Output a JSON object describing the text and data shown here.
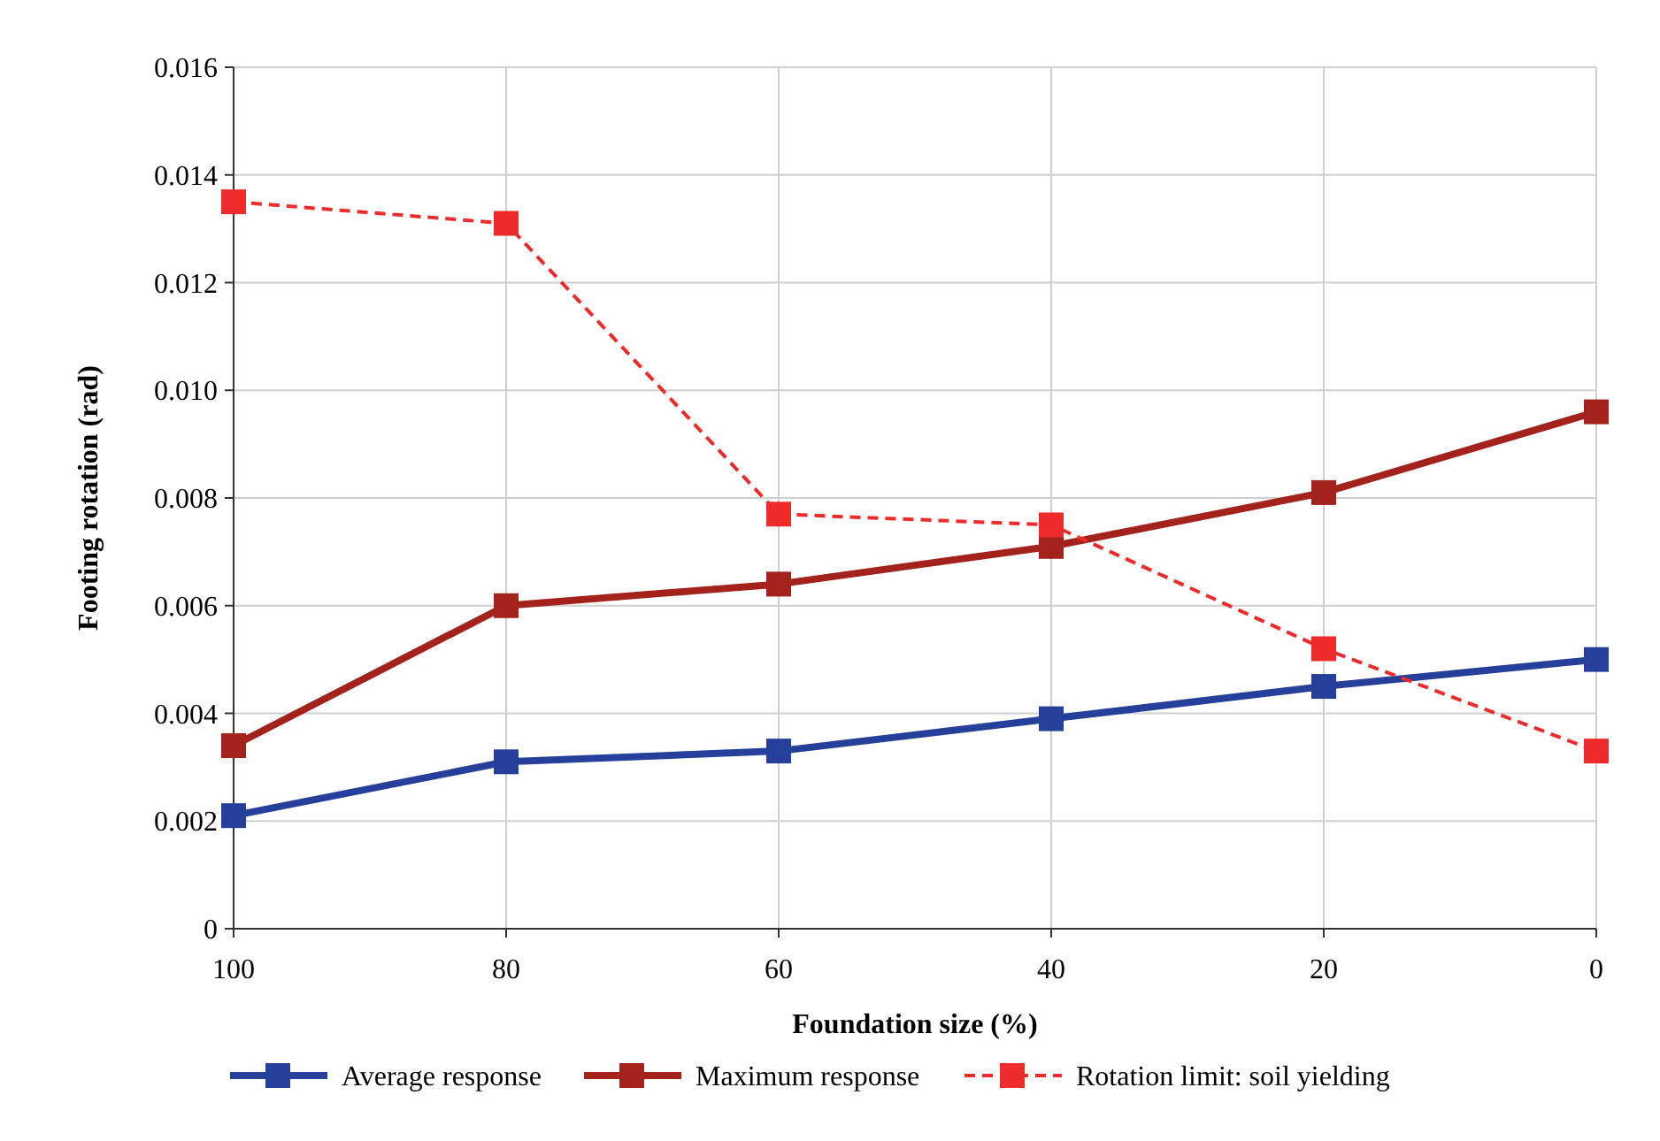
{
  "chart_data": {
    "type": "line",
    "xlabel": "Foundation size (%)",
    "ylabel": "Footing rotation (rad)",
    "x": [
      100,
      80,
      60,
      40,
      20,
      0
    ],
    "xlim": [
      100,
      0
    ],
    "xticks": [
      100,
      80,
      60,
      40,
      20,
      0
    ],
    "ylim": [
      0,
      0.016
    ],
    "yticks": [
      0,
      0.002,
      0.004,
      0.006,
      0.008,
      {
        "value": 0.01,
        "label": "0.010"
      },
      0.012,
      0.014,
      0.016
    ],
    "grid": true,
    "legend": "bottom",
    "marker": "square",
    "series": [
      {
        "name": "Average response",
        "color": "#253f9a",
        "values": [
          0.0021,
          0.0031,
          0.0033,
          0.0039,
          0.0045,
          0.005
        ],
        "line_style": "solid"
      },
      {
        "name": "Maximum response",
        "color": "#a3231c",
        "values": [
          0.0034,
          0.006,
          0.0064,
          0.0071,
          0.0081,
          0.0096
        ],
        "line_style": "solid"
      },
      {
        "name": "Rotation limit: soil yielding",
        "color": "#ee2b2b",
        "values": [
          0.0135,
          0.0131,
          0.0077,
          0.0075,
          0.0052,
          0.0033
        ],
        "line_style": "dashed"
      }
    ]
  }
}
